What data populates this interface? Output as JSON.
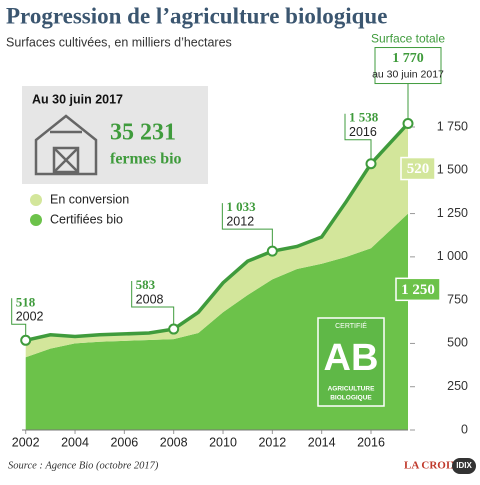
{
  "chart_data": {
    "type": "stacked_area",
    "title": "Progression de l’agriculture biologique",
    "subtitle": "Surfaces cultivées, en milliers d’hectares",
    "x": [
      2002,
      2003,
      2004,
      2005,
      2006,
      2007,
      2008,
      2009,
      2010,
      2011,
      2012,
      2013,
      2014,
      2015,
      2016,
      2017.5
    ],
    "series": [
      {
        "name": "Certifiées bio",
        "color": "#6cc24a",
        "values": [
          420,
          470,
          500,
          510,
          515,
          520,
          525,
          560,
          680,
          780,
          870,
          930,
          960,
          1000,
          1050,
          1250
        ],
        "value_labels": [
          null,
          null,
          null,
          null,
          null,
          null,
          null,
          null,
          null,
          null,
          null,
          null,
          null,
          null,
          null,
          "1 250"
        ]
      },
      {
        "name": "En conversion",
        "color": "#d3e69b",
        "values": [
          98,
          80,
          40,
          40,
          40,
          40,
          58,
          120,
          170,
          195,
          163,
          130,
          155,
          320,
          488,
          520
        ],
        "value_labels": [
          null,
          null,
          null,
          null,
          null,
          null,
          null,
          null,
          null,
          null,
          null,
          null,
          null,
          null,
          null,
          "520"
        ]
      }
    ],
    "line_color": "#3f9b3c",
    "xlim": [
      2001.85,
      2017.5
    ],
    "xticks": [
      2002,
      2004,
      2006,
      2008,
      2010,
      2012,
      2014,
      2016
    ],
    "ylim": [
      0,
      1750
    ],
    "yticks": [
      0,
      250,
      500,
      750,
      {
        "value": 1000,
        "label": "1 000"
      },
      {
        "value": 1250,
        "label": "1 250"
      },
      {
        "value": 1500,
        "label": "1 500"
      },
      {
        "value": 1750,
        "label": "1 750"
      }
    ],
    "point_labels": [
      {
        "x": 2002,
        "value": 518,
        "label": "518",
        "date": "2002"
      },
      {
        "x": 2008,
        "value": 583,
        "label": "583",
        "date": "2008"
      },
      {
        "x": 2012,
        "value": 1033,
        "label": "1 033",
        "date": "2012"
      },
      {
        "x": 2016,
        "value": 1538,
        "label": "1 538",
        "date": "2016"
      },
      {
        "x": 2017.5,
        "value": 1770,
        "label": "1 770",
        "date": "au 30 juin 2017",
        "heading": "Surface totale"
      }
    ],
    "inset": {
      "date": "Au 30 juin 2017",
      "value": 35231,
      "label": "35 231",
      "unit": "fermes bio"
    },
    "logo": {
      "top": "CERTIFIÉ",
      "letters": "AB",
      "line1": "AGRICULTURE",
      "line2": "BIOLOGIQUE"
    },
    "source": "Source : Agence Bio (octobre 2017)",
    "brand": "LA CROIX",
    "brand_tag": "IDIX"
  }
}
